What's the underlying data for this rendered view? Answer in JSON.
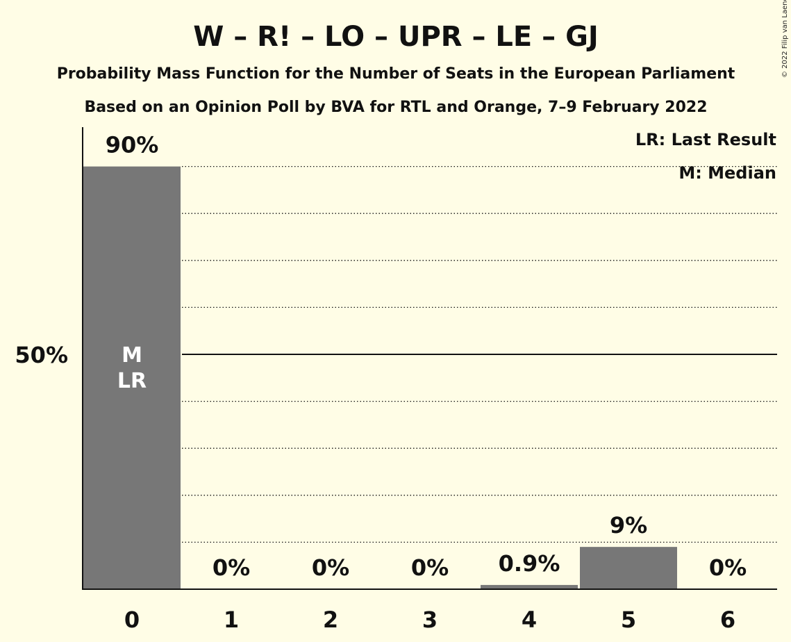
{
  "copyright": "© 2022 Filip van Laenen",
  "chart_data": {
    "type": "bar",
    "title": "W – R! – LO – UPR – LE – GJ",
    "subtitle": "Probability Mass Function for the Number of Seats in the European Parliament",
    "subtitle2": "Based on an Opinion Poll by BVA for RTL and Orange, 7–9 February 2022",
    "categories": [
      "0",
      "1",
      "2",
      "3",
      "4",
      "5",
      "6"
    ],
    "values": [
      90,
      0,
      0,
      0,
      0.9,
      9,
      0
    ],
    "value_labels": [
      "90%",
      "0%",
      "0%",
      "0%",
      "0.9%",
      "9%",
      "0%"
    ],
    "ytick_label": "50%",
    "ylim": [
      0,
      100
    ],
    "bar_color": "#777777",
    "background": "#FFFDE6",
    "bar_annotations": [
      {
        "index": 0,
        "lines": [
          "M",
          "LR"
        ]
      }
    ],
    "legend": [
      "LR: Last Result",
      "M: Median"
    ],
    "legend_position": "top-right"
  }
}
